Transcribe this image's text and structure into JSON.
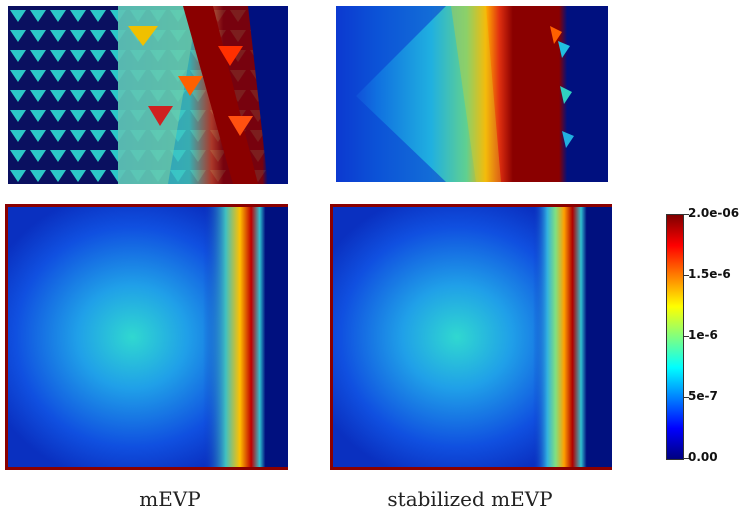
{
  "panels": {
    "left_caption": "mEVP",
    "right_caption": "stabilized mEVP"
  },
  "colorbar": {
    "ticks": [
      {
        "label": "2.0e-06",
        "value": 2e-06
      },
      {
        "label": "1.5e-6",
        "value": 1.5e-06
      },
      {
        "label": "1e-6",
        "value": 1e-06
      },
      {
        "label": "5e-7",
        "value": 5e-07
      },
      {
        "label": "0.00",
        "value": 0
      }
    ],
    "min": 0,
    "max": 2e-06,
    "colormap": [
      "#00007f",
      "#0000ff",
      "#0080ff",
      "#00ffff",
      "#80ff80",
      "#ffff00",
      "#ff8000",
      "#ff0000",
      "#7f0000"
    ]
  }
}
